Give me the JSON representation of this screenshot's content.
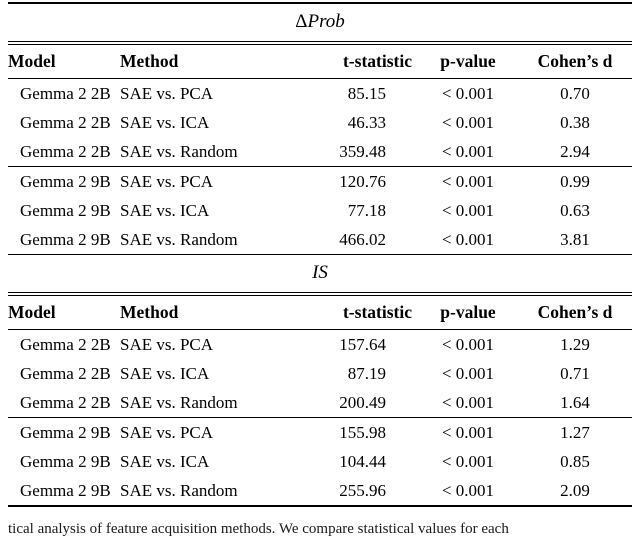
{
  "sections": [
    {
      "title_delta": "Δ",
      "title_rest": "Prob",
      "columns": [
        "Model",
        "Method",
        "t-statistic",
        "p-value",
        "Cohen’s d"
      ],
      "groups": [
        {
          "rows": [
            {
              "model": "Gemma 2 2B",
              "method": "SAE vs. PCA",
              "t": "85.15",
              "p": "< 0.001",
              "d": "0.70"
            },
            {
              "model": "Gemma 2 2B",
              "method": "SAE vs. ICA",
              "t": "46.33",
              "p": "< 0.001",
              "d": "0.38"
            },
            {
              "model": "Gemma 2 2B",
              "method": "SAE vs. Random",
              "t": "359.48",
              "p": "< 0.001",
              "d": "2.94"
            }
          ]
        },
        {
          "rows": [
            {
              "model": "Gemma 2 9B",
              "method": "SAE vs. PCA",
              "t": "120.76",
              "p": "< 0.001",
              "d": "0.99"
            },
            {
              "model": "Gemma 2 9B",
              "method": "SAE vs. ICA",
              "t": "77.18",
              "p": "< 0.001",
              "d": "0.63"
            },
            {
              "model": "Gemma 2 9B",
              "method": "SAE vs. Random",
              "t": "466.02",
              "p": "< 0.001",
              "d": "3.81"
            }
          ]
        }
      ]
    },
    {
      "title_delta": "",
      "title_rest": "IS",
      "columns": [
        "Model",
        "Method",
        "t-statistic",
        "p-value",
        "Cohen’s d"
      ],
      "groups": [
        {
          "rows": [
            {
              "model": "Gemma 2 2B",
              "method": "SAE vs. PCA",
              "t": "157.64",
              "p": "< 0.001",
              "d": "1.29"
            },
            {
              "model": "Gemma 2 2B",
              "method": "SAE vs. ICA",
              "t": "87.19",
              "p": "< 0.001",
              "d": "0.71"
            },
            {
              "model": "Gemma 2 2B",
              "method": "SAE vs. Random",
              "t": "200.49",
              "p": "< 0.001",
              "d": "1.64"
            }
          ]
        },
        {
          "rows": [
            {
              "model": "Gemma 2 9B",
              "method": "SAE vs. PCA",
              "t": "155.98",
              "p": "< 0.001",
              "d": "1.27"
            },
            {
              "model": "Gemma 2 9B",
              "method": "SAE vs. ICA",
              "t": "104.44",
              "p": "< 0.001",
              "d": "0.85"
            },
            {
              "model": "Gemma 2 9B",
              "method": "SAE vs. Random",
              "t": "255.96",
              "p": "< 0.001",
              "d": "2.09"
            }
          ]
        }
      ]
    }
  ],
  "caption_fragment": "tical analysis of feature acquisition methods. We compare statistical values for each"
}
